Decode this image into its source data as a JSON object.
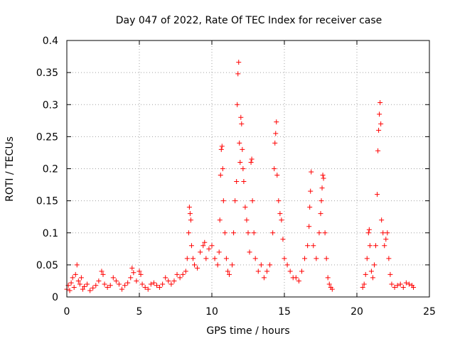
{
  "chart_data": {
    "type": "scatter",
    "title": "Day 047 of 2022, Rate Of TEC Index for receiver case",
    "xlabel": "GPS time / hours",
    "ylabel": "ROTI / TECUs",
    "xlim": [
      0,
      25
    ],
    "ylim": [
      0,
      0.4
    ],
    "grid": true,
    "marker": "+",
    "color": "#ff0000",
    "x_ticks": [
      {
        "value": 0,
        "label": "0"
      },
      {
        "value": 5,
        "label": "5"
      },
      {
        "value": 10,
        "label": "10"
      },
      {
        "value": 15,
        "label": "15"
      },
      {
        "value": 20,
        "label": "20"
      },
      {
        "value": 25,
        "label": "25"
      }
    ],
    "y_ticks": [
      {
        "value": 0,
        "label": "0"
      },
      {
        "value": 0.05,
        "label": "0.05"
      },
      {
        "value": 0.1,
        "label": "0.1"
      },
      {
        "value": 0.15,
        "label": "0.15"
      },
      {
        "value": 0.2,
        "label": "0.2"
      },
      {
        "value": 0.25,
        "label": "0.25"
      },
      {
        "value": 0.3,
        "label": "0.3"
      },
      {
        "value": 0.35,
        "label": "0.35"
      },
      {
        "value": 0.4,
        "label": "0.4"
      }
    ],
    "points": [
      [
        0.0,
        0.012
      ],
      [
        0.1,
        0.018
      ],
      [
        0.2,
        0.01
      ],
      [
        0.3,
        0.022
      ],
      [
        0.4,
        0.03
      ],
      [
        0.5,
        0.015
      ],
      [
        0.6,
        0.035
      ],
      [
        0.7,
        0.05
      ],
      [
        0.8,
        0.025
      ],
      [
        0.9,
        0.02
      ],
      [
        1.0,
        0.03
      ],
      [
        1.1,
        0.012
      ],
      [
        1.2,
        0.016
      ],
      [
        1.4,
        0.02
      ],
      [
        1.6,
        0.01
      ],
      [
        1.8,
        0.014
      ],
      [
        2.0,
        0.018
      ],
      [
        2.2,
        0.025
      ],
      [
        2.4,
        0.04
      ],
      [
        2.5,
        0.035
      ],
      [
        2.6,
        0.02
      ],
      [
        2.8,
        0.015
      ],
      [
        3.0,
        0.018
      ],
      [
        3.2,
        0.03
      ],
      [
        3.4,
        0.025
      ],
      [
        3.6,
        0.02
      ],
      [
        3.8,
        0.012
      ],
      [
        4.0,
        0.018
      ],
      [
        4.2,
        0.022
      ],
      [
        4.4,
        0.03
      ],
      [
        4.5,
        0.045
      ],
      [
        4.6,
        0.038
      ],
      [
        4.8,
        0.025
      ],
      [
        5.0,
        0.04
      ],
      [
        5.1,
        0.035
      ],
      [
        5.2,
        0.02
      ],
      [
        5.4,
        0.015
      ],
      [
        5.6,
        0.012
      ],
      [
        5.8,
        0.02
      ],
      [
        6.0,
        0.022
      ],
      [
        6.2,
        0.018
      ],
      [
        6.4,
        0.015
      ],
      [
        6.6,
        0.02
      ],
      [
        6.8,
        0.03
      ],
      [
        7.0,
        0.025
      ],
      [
        7.2,
        0.02
      ],
      [
        7.4,
        0.025
      ],
      [
        7.6,
        0.035
      ],
      [
        7.8,
        0.03
      ],
      [
        8.0,
        0.035
      ],
      [
        8.2,
        0.04
      ],
      [
        8.3,
        0.06
      ],
      [
        8.4,
        0.1
      ],
      [
        8.45,
        0.14
      ],
      [
        8.5,
        0.13
      ],
      [
        8.55,
        0.12
      ],
      [
        8.6,
        0.08
      ],
      [
        8.7,
        0.06
      ],
      [
        8.8,
        0.05
      ],
      [
        9.0,
        0.045
      ],
      [
        9.2,
        0.07
      ],
      [
        9.4,
        0.08
      ],
      [
        9.5,
        0.085
      ],
      [
        9.6,
        0.06
      ],
      [
        9.8,
        0.075
      ],
      [
        10.0,
        0.08
      ],
      [
        10.2,
        0.06
      ],
      [
        10.4,
        0.05
      ],
      [
        10.5,
        0.07
      ],
      [
        10.55,
        0.12
      ],
      [
        10.6,
        0.19
      ],
      [
        10.65,
        0.23
      ],
      [
        10.7,
        0.235
      ],
      [
        10.75,
        0.2
      ],
      [
        10.8,
        0.15
      ],
      [
        10.9,
        0.1
      ],
      [
        11.0,
        0.06
      ],
      [
        11.1,
        0.04
      ],
      [
        11.2,
        0.035
      ],
      [
        11.4,
        0.05
      ],
      [
        11.5,
        0.1
      ],
      [
        11.6,
        0.15
      ],
      [
        11.7,
        0.18
      ],
      [
        11.75,
        0.3
      ],
      [
        11.8,
        0.348
      ],
      [
        11.85,
        0.366
      ],
      [
        11.9,
        0.24
      ],
      [
        11.95,
        0.21
      ],
      [
        12.0,
        0.28
      ],
      [
        12.05,
        0.27
      ],
      [
        12.1,
        0.23
      ],
      [
        12.15,
        0.2
      ],
      [
        12.2,
        0.18
      ],
      [
        12.3,
        0.14
      ],
      [
        12.4,
        0.12
      ],
      [
        12.5,
        0.1
      ],
      [
        12.6,
        0.07
      ],
      [
        12.7,
        0.21
      ],
      [
        12.75,
        0.215
      ],
      [
        12.8,
        0.15
      ],
      [
        12.9,
        0.1
      ],
      [
        13.0,
        0.06
      ],
      [
        13.2,
        0.04
      ],
      [
        13.4,
        0.05
      ],
      [
        13.6,
        0.03
      ],
      [
        13.8,
        0.04
      ],
      [
        14.0,
        0.05
      ],
      [
        14.2,
        0.1
      ],
      [
        14.3,
        0.2
      ],
      [
        14.35,
        0.24
      ],
      [
        14.4,
        0.255
      ],
      [
        14.45,
        0.273
      ],
      [
        14.5,
        0.19
      ],
      [
        14.6,
        0.15
      ],
      [
        14.7,
        0.13
      ],
      [
        14.8,
        0.12
      ],
      [
        14.9,
        0.09
      ],
      [
        15.0,
        0.06
      ],
      [
        15.2,
        0.05
      ],
      [
        15.4,
        0.04
      ],
      [
        15.6,
        0.03
      ],
      [
        15.8,
        0.03
      ],
      [
        16.0,
        0.025
      ],
      [
        16.2,
        0.04
      ],
      [
        16.4,
        0.06
      ],
      [
        16.6,
        0.08
      ],
      [
        16.7,
        0.11
      ],
      [
        16.75,
        0.14
      ],
      [
        16.8,
        0.165
      ],
      [
        16.85,
        0.195
      ],
      [
        17.0,
        0.08
      ],
      [
        17.2,
        0.06
      ],
      [
        17.4,
        0.1
      ],
      [
        17.5,
        0.13
      ],
      [
        17.55,
        0.15
      ],
      [
        17.6,
        0.17
      ],
      [
        17.65,
        0.19
      ],
      [
        17.7,
        0.185
      ],
      [
        17.8,
        0.1
      ],
      [
        17.9,
        0.06
      ],
      [
        18.0,
        0.03
      ],
      [
        18.1,
        0.02
      ],
      [
        18.2,
        0.015
      ],
      [
        18.3,
        0.012
      ],
      [
        20.4,
        0.015
      ],
      [
        20.5,
        0.02
      ],
      [
        20.6,
        0.035
      ],
      [
        20.7,
        0.06
      ],
      [
        20.8,
        0.1
      ],
      [
        20.85,
        0.105
      ],
      [
        20.9,
        0.08
      ],
      [
        21.0,
        0.04
      ],
      [
        21.1,
        0.03
      ],
      [
        21.2,
        0.05
      ],
      [
        21.3,
        0.08
      ],
      [
        21.4,
        0.16
      ],
      [
        21.45,
        0.228
      ],
      [
        21.5,
        0.26
      ],
      [
        21.55,
        0.285
      ],
      [
        21.6,
        0.303
      ],
      [
        21.65,
        0.27
      ],
      [
        21.7,
        0.12
      ],
      [
        21.8,
        0.1
      ],
      [
        21.9,
        0.08
      ],
      [
        22.0,
        0.09
      ],
      [
        22.1,
        0.1
      ],
      [
        22.2,
        0.06
      ],
      [
        22.3,
        0.035
      ],
      [
        22.4,
        0.02
      ],
      [
        22.6,
        0.015
      ],
      [
        22.8,
        0.018
      ],
      [
        23.0,
        0.02
      ],
      [
        23.2,
        0.015
      ],
      [
        23.4,
        0.022
      ],
      [
        23.6,
        0.02
      ],
      [
        23.8,
        0.018
      ],
      [
        23.9,
        0.015
      ]
    ]
  }
}
